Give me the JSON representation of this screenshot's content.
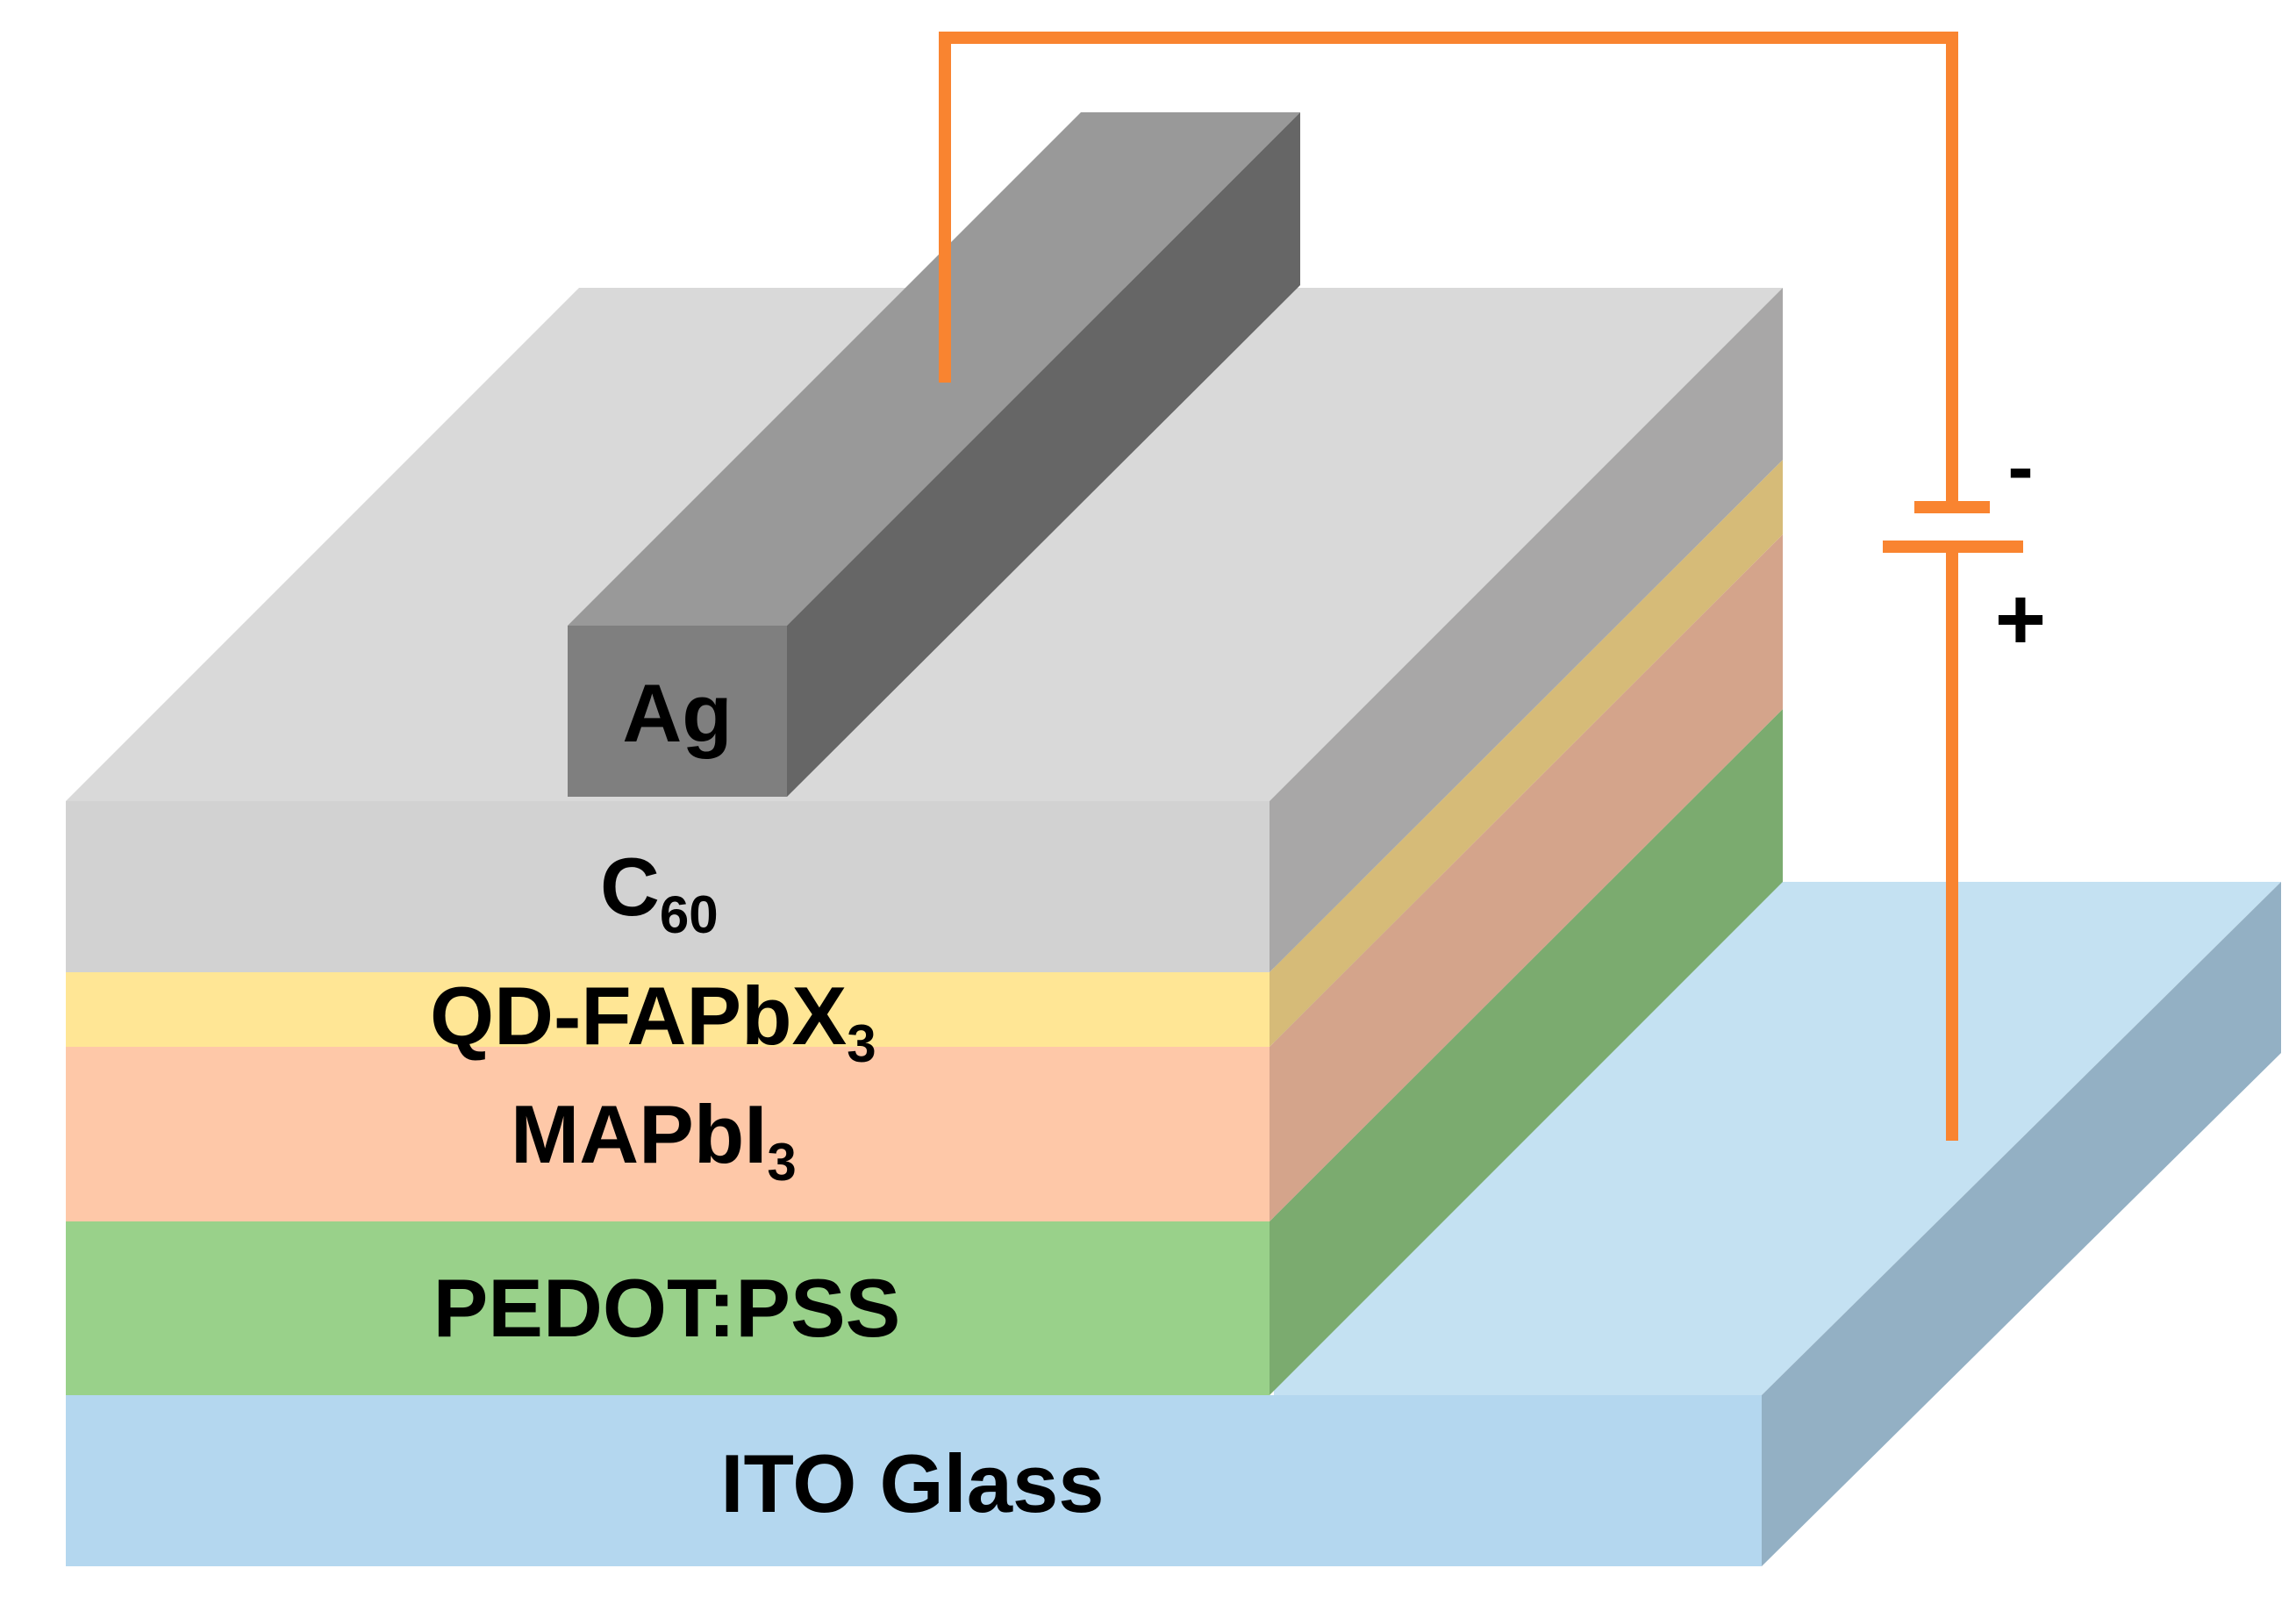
{
  "layers": {
    "ito": {
      "label": "ITO Glass"
    },
    "pedot": {
      "label": "PEDOT:PSS"
    },
    "mapbi": {
      "label_main": "MAPbI",
      "label_sub": "3"
    },
    "qd": {
      "label_main": "QD-FAPbX",
      "label_sub": "3"
    },
    "c60": {
      "label_main": "C",
      "label_sub": "60"
    },
    "ag": {
      "label": "Ag"
    }
  },
  "battery": {
    "minus": "-",
    "plus": "+"
  },
  "colors": {
    "ito_front": "#b4d7ef",
    "ito_top": "#c4e1f2",
    "ito_side": "#93b0c4",
    "pedot_front": "#99d18a",
    "pedot_side": "#7bab6f",
    "mapbi_front": "#fec8a8",
    "mapbi_side": "#d4a48b",
    "qd_front": "#ffe695",
    "qd_side": "#d6bb78",
    "c60_front": "#d2d2d2",
    "c60_top": "#d9d9d9",
    "c60_side": "#a8a7a7",
    "ag_front": "#7f7f7f",
    "ag_top": "#999999",
    "ag_side": "#666666",
    "wire": "#f98430"
  }
}
